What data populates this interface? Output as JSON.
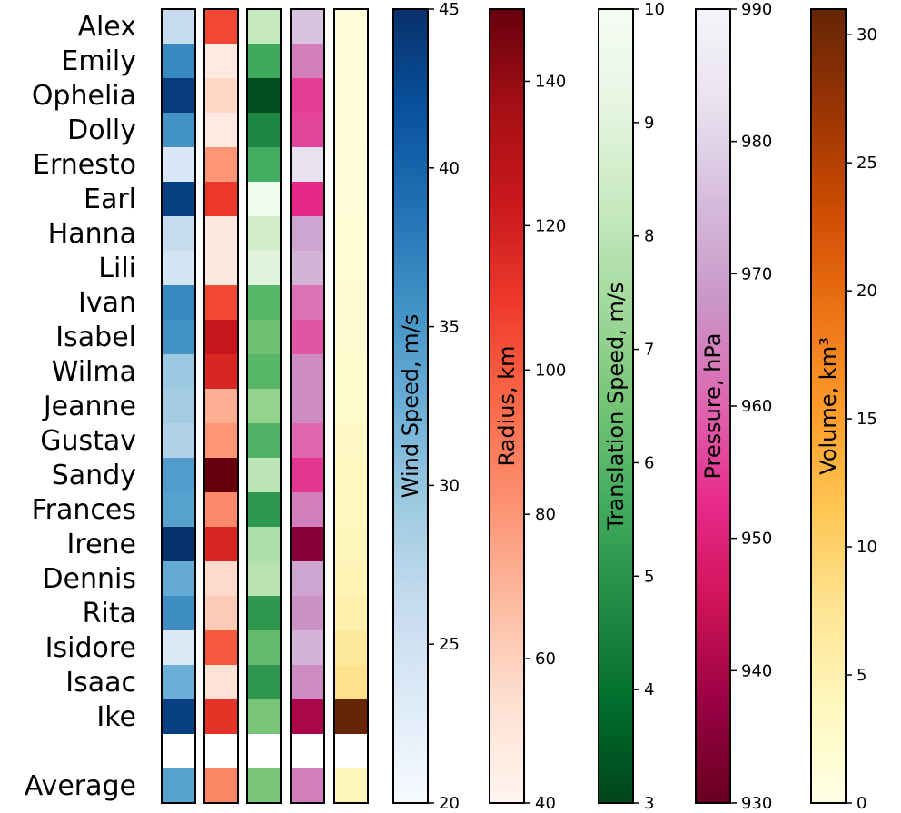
{
  "chart_data": {
    "type": "heatmap",
    "rows": [
      "Alex",
      "Emily",
      "Ophelia",
      "Dolly",
      "Ernesto",
      "Earl",
      "Hanna",
      "Lili",
      "Ivan",
      "Isabel",
      "Wilma",
      "Jeanne",
      "Gustav",
      "Sandy",
      "Frances",
      "Irene",
      "Dennis",
      "Rita",
      "Isidore",
      "Isaac",
      "Ike",
      "",
      "Average"
    ],
    "columns": [
      {
        "key": "wind",
        "cmap": "Blues",
        "colorbar": {
          "label": "Wind Speed, m/s",
          "range": [
            20,
            45
          ],
          "ticks": [
            20,
            25,
            30,
            35,
            40,
            45
          ]
        },
        "values": [
          26,
          36.5,
          44,
          35.5,
          24,
          43.5,
          26,
          24.5,
          36.5,
          35.5,
          29.5,
          29,
          28,
          34.5,
          34,
          45,
          33,
          36,
          23.5,
          32.5,
          43.5,
          null,
          34
        ]
      },
      {
        "key": "radius",
        "cmap": "Reds",
        "colorbar": {
          "label": "Radius, km",
          "range": [
            40,
            150
          ],
          "ticks": [
            40,
            60,
            80,
            100,
            120,
            140
          ]
        },
        "values": [
          105,
          47,
          57,
          47,
          80,
          110,
          48,
          48,
          105,
          125,
          117,
          72,
          80,
          150,
          84,
          117,
          56,
          61,
          100,
          52,
          112,
          null,
          85
        ]
      },
      {
        "key": "translation",
        "cmap": "Greens_r",
        "colorbar": {
          "label": "Translation Speed, m/s",
          "range": [
            3,
            10
          ],
          "ticks": [
            3,
            4,
            5,
            6,
            7,
            8,
            9,
            10
          ]
        },
        "values": [
          8.2,
          5.6,
          3.2,
          4.6,
          5.7,
          9.7,
          8.6,
          9.0,
          6.0,
          6.4,
          6.0,
          7.1,
          5.9,
          8.0,
          5.1,
          7.7,
          7.9,
          5.1,
          6.2,
          5.1,
          6.6,
          null,
          6.6
        ]
      },
      {
        "key": "pressure",
        "cmap": "PuRd_r",
        "colorbar": {
          "label": "Pressure, hPa",
          "range": [
            930,
            990
          ],
          "ticks": [
            930,
            940,
            950,
            960,
            970,
            980,
            990
          ]
        },
        "values": [
          977,
          964,
          955,
          956,
          983,
          952,
          971,
          974,
          962,
          958,
          966,
          966,
          960,
          954,
          964,
          935,
          971,
          967,
          974,
          966,
          940,
          null,
          964
        ]
      },
      {
        "key": "volume",
        "cmap": "YlOrBr",
        "colorbar": {
          "label": "Volume, km³",
          "range": [
            0,
            31
          ],
          "ticks": [
            0,
            5,
            10,
            15,
            20,
            25,
            30
          ]
        },
        "values": [
          1.0,
          1.2,
          1.0,
          1.0,
          1.1,
          1.2,
          1.5,
          1.5,
          2.0,
          2.0,
          2.2,
          2.5,
          2.8,
          3.5,
          3.5,
          4.0,
          4.5,
          5.2,
          6.5,
          8.0,
          31.0,
          null,
          4.0
        ]
      }
    ],
    "colorbar_ticks_side": "right",
    "colorbar_label_orientation": "vertical",
    "missing_color": "#ffffff"
  }
}
